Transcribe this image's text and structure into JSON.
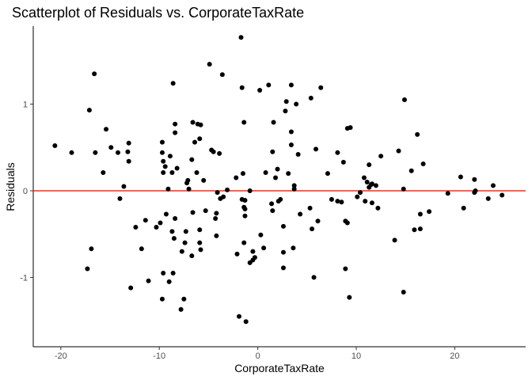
{
  "chart_data": {
    "type": "scatter",
    "title": "Scatterplot of Residuals vs. CorporateTaxRate",
    "xlabel": "CorporateTaxRate",
    "ylabel": "Residuals",
    "xlim": [
      -22.8,
      27.2
    ],
    "ylim": [
      -1.8,
      1.9
    ],
    "xticks": [
      -20,
      -10,
      0,
      10,
      20
    ],
    "yticks": [
      -1,
      0,
      1
    ],
    "xtick_labels": [
      "-20",
      "-10",
      "0",
      "10",
      "20"
    ],
    "ytick_labels": [
      "-1",
      "0",
      "1"
    ],
    "grid": false,
    "legend": "none",
    "reference_line": {
      "y": 0,
      "color": "#ff2a1a"
    },
    "point_color": "#000000",
    "points": [
      [
        -20.6,
        0.52
      ],
      [
        -18.9,
        0.44
      ],
      [
        -17.1,
        0.93
      ],
      [
        -16.9,
        -0.67
      ],
      [
        -16.6,
        1.35
      ],
      [
        -16.5,
        0.44
      ],
      [
        -17.3,
        -0.9
      ],
      [
        -15.7,
        0.21
      ],
      [
        -15.4,
        0.71
      ],
      [
        -14.9,
        0.5
      ],
      [
        -14.2,
        0.44
      ],
      [
        -14.0,
        -0.09
      ],
      [
        -13.6,
        0.05
      ],
      [
        -13.1,
        0.55
      ],
      [
        -13.2,
        0.45
      ],
      [
        -13.1,
        0.34
      ],
      [
        -12.9,
        -1.12
      ],
      [
        -12.4,
        -0.42
      ],
      [
        -11.8,
        -0.67
      ],
      [
        -11.4,
        -0.34
      ],
      [
        -11.1,
        -1.04
      ],
      [
        -10.3,
        -0.42
      ],
      [
        -9.9,
        -0.37
      ],
      [
        -9.7,
        0.56
      ],
      [
        -9.7,
        0.44
      ],
      [
        -9.6,
        0.34
      ],
      [
        -9.6,
        0.21
      ],
      [
        -9.4,
        0.28
      ],
      [
        -9.3,
        -0.27
      ],
      [
        -9.1,
        0.02
      ],
      [
        -8.9,
        0.4
      ],
      [
        -9.7,
        -1.25
      ],
      [
        -9.6,
        -0.95
      ],
      [
        -9.0,
        -1.05
      ],
      [
        -8.6,
        -0.95
      ],
      [
        -8.7,
        0.21
      ],
      [
        -8.7,
        -0.47
      ],
      [
        -8.6,
        1.24
      ],
      [
        -8.4,
        0.77
      ],
      [
        -8.4,
        0.67
      ],
      [
        -8.4,
        -0.32
      ],
      [
        -8.2,
        0.26
      ],
      [
        -8.5,
        -0.55
      ],
      [
        -7.7,
        -0.7
      ],
      [
        -7.4,
        -0.6
      ],
      [
        -7.3,
        -0.47
      ],
      [
        -7.2,
        0.09
      ],
      [
        -7.1,
        0.12
      ],
      [
        -7.0,
        0.02
      ],
      [
        -6.6,
        0.79
      ],
      [
        -6.4,
        0.56
      ],
      [
        -6.2,
        0.21
      ],
      [
        -6.7,
        0.36
      ],
      [
        -6.6,
        -0.25
      ],
      [
        -6.1,
        0.77
      ],
      [
        -5.9,
        0.6
      ],
      [
        -5.9,
        -0.45
      ],
      [
        -5.8,
        0.76
      ],
      [
        -5.9,
        -0.6
      ],
      [
        -5.8,
        -0.68
      ],
      [
        -6.7,
        -0.75
      ],
      [
        -7.5,
        -1.25
      ],
      [
        -7.8,
        -1.37
      ],
      [
        -5.5,
        0.12
      ],
      [
        -5.3,
        -0.23
      ],
      [
        -4.9,
        1.46
      ],
      [
        -4.7,
        0.47
      ],
      [
        -4.5,
        0.45
      ],
      [
        -4.3,
        -0.32
      ],
      [
        -4.2,
        -0.26
      ],
      [
        -4.2,
        -0.52
      ],
      [
        -4.1,
        -0.02
      ],
      [
        -3.9,
        0.43
      ],
      [
        -3.8,
        -0.09
      ],
      [
        -3.6,
        1.34
      ],
      [
        -3.5,
        -0.07
      ],
      [
        -3.1,
        0.01
      ],
      [
        -2.2,
        0.15
      ],
      [
        -2.1,
        -0.73
      ],
      [
        -1.9,
        -1.45
      ],
      [
        -1.7,
        1.77
      ],
      [
        -1.6,
        1.19
      ],
      [
        -1.4,
        0.79
      ],
      [
        -1.5,
        0.2
      ],
      [
        -1.4,
        -0.19
      ],
      [
        -1.3,
        -0.21
      ],
      [
        -1.3,
        -0.29
      ],
      [
        -1.4,
        -0.6
      ],
      [
        -1.2,
        -1.51
      ],
      [
        -1.3,
        -0.11
      ],
      [
        -1.6,
        -0.1
      ],
      [
        -0.8,
        0.0
      ],
      [
        -0.8,
        -0.83
      ],
      [
        -0.5,
        -0.7
      ],
      [
        -0.5,
        -0.8
      ],
      [
        -0.3,
        -0.77
      ],
      [
        0.2,
        1.16
      ],
      [
        0.3,
        -0.51
      ],
      [
        0.6,
        -0.66
      ],
      [
        0.8,
        0.21
      ],
      [
        1.1,
        1.22
      ],
      [
        1.4,
        -0.15
      ],
      [
        1.5,
        0.45
      ],
      [
        1.5,
        -0.23
      ],
      [
        1.6,
        0.79
      ],
      [
        1.8,
        0.15
      ],
      [
        2.0,
        0.25
      ],
      [
        2.3,
        -0.1
      ],
      [
        2.6,
        -0.71
      ],
      [
        2.6,
        -0.41
      ],
      [
        2.8,
        0.92
      ],
      [
        2.9,
        1.03
      ],
      [
        3.1,
        0.2
      ],
      [
        3.4,
        0.53
      ],
      [
        3.4,
        0.68
      ],
      [
        3.4,
        1.22
      ],
      [
        3.7,
        0.06
      ],
      [
        3.7,
        0.02
      ],
      [
        3.6,
        -0.66
      ],
      [
        3.9,
        1.0
      ],
      [
        4.1,
        0.42
      ],
      [
        2.6,
        -0.89
      ],
      [
        2.1,
        -0.12
      ],
      [
        4.3,
        -0.27
      ],
      [
        5.3,
        -0.2
      ],
      [
        5.4,
        1.07
      ],
      [
        5.5,
        -0.44
      ],
      [
        5.7,
        -1.0
      ],
      [
        5.9,
        0.48
      ],
      [
        6.1,
        -0.35
      ],
      [
        6.4,
        1.19
      ],
      [
        7.1,
        0.2
      ],
      [
        7.5,
        -0.1
      ],
      [
        8.1,
        0.44
      ],
      [
        8.1,
        -0.12
      ],
      [
        8.5,
        -0.13
      ],
      [
        8.7,
        0.33
      ],
      [
        8.9,
        -0.9
      ],
      [
        8.9,
        -0.35
      ],
      [
        9.1,
        0.72
      ],
      [
        9.1,
        -0.37
      ],
      [
        9.4,
        0.73
      ],
      [
        9.3,
        -1.23
      ],
      [
        10.1,
        -0.07
      ],
      [
        10.4,
        -0.02
      ],
      [
        10.8,
        0.15
      ],
      [
        10.9,
        -0.12
      ],
      [
        11.1,
        0.1
      ],
      [
        11.3,
        0.3
      ],
      [
        11.3,
        0.04
      ],
      [
        11.5,
        0.07
      ],
      [
        11.6,
        0.08
      ],
      [
        11.6,
        -0.14
      ],
      [
        12.0,
        0.06
      ],
      [
        12.2,
        -0.2
      ],
      [
        12.5,
        0.4
      ],
      [
        13.9,
        -0.57
      ],
      [
        14.3,
        0.46
      ],
      [
        14.8,
        0.02
      ],
      [
        14.9,
        1.05
      ],
      [
        14.8,
        -1.17
      ],
      [
        15.6,
        0.23
      ],
      [
        15.9,
        -0.45
      ],
      [
        16.2,
        0.65
      ],
      [
        16.5,
        -0.27
      ],
      [
        16.5,
        -0.44
      ],
      [
        16.8,
        0.31
      ],
      [
        17.4,
        -0.24
      ],
      [
        19.3,
        -0.03
      ],
      [
        20.6,
        0.16
      ],
      [
        20.9,
        -0.2
      ],
      [
        22.0,
        0.13
      ],
      [
        22.0,
        -0.02
      ],
      [
        22.1,
        0.0
      ],
      [
        23.4,
        -0.09
      ],
      [
        23.9,
        0.06
      ],
      [
        24.8,
        -0.05
      ]
    ]
  }
}
